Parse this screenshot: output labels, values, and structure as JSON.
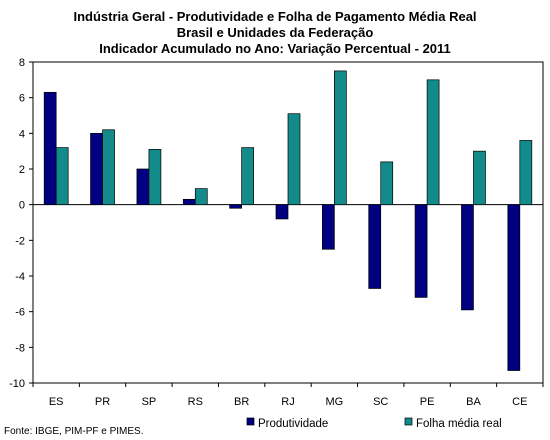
{
  "chart_data": {
    "type": "bar",
    "title": [
      "Indústria Geral - Produtividade e Folha de Pagamento Média Real",
      "Brasil e Unidades da Federação",
      "Indicador Acumulado no Ano: Variação Percentual - 2011"
    ],
    "categories": [
      "ES",
      "PR",
      "SP",
      "RS",
      "BR",
      "RJ",
      "MG",
      "SC",
      "PE",
      "BA",
      "CE"
    ],
    "series": [
      {
        "name": "Produtividade",
        "color": "#000080",
        "values": [
          6.3,
          4.0,
          2.0,
          0.3,
          -0.2,
          -0.8,
          -2.5,
          -4.7,
          -5.2,
          -5.9,
          -9.3
        ]
      },
      {
        "name": "Folha média real",
        "color": "#138B8B",
        "values": [
          3.2,
          4.2,
          3.1,
          0.9,
          3.2,
          5.1,
          7.5,
          2.4,
          7.0,
          3.0,
          3.6
        ]
      }
    ],
    "ylim": [
      -10,
      8
    ],
    "yticks": [
      8,
      6,
      4,
      2,
      0,
      -2,
      -4,
      -6,
      -8,
      -10
    ],
    "xlabel": "",
    "ylabel": "",
    "legend_position": "bottom",
    "grid": false
  },
  "source": "Fonte: IBGE, PIM-PF e PIMES."
}
